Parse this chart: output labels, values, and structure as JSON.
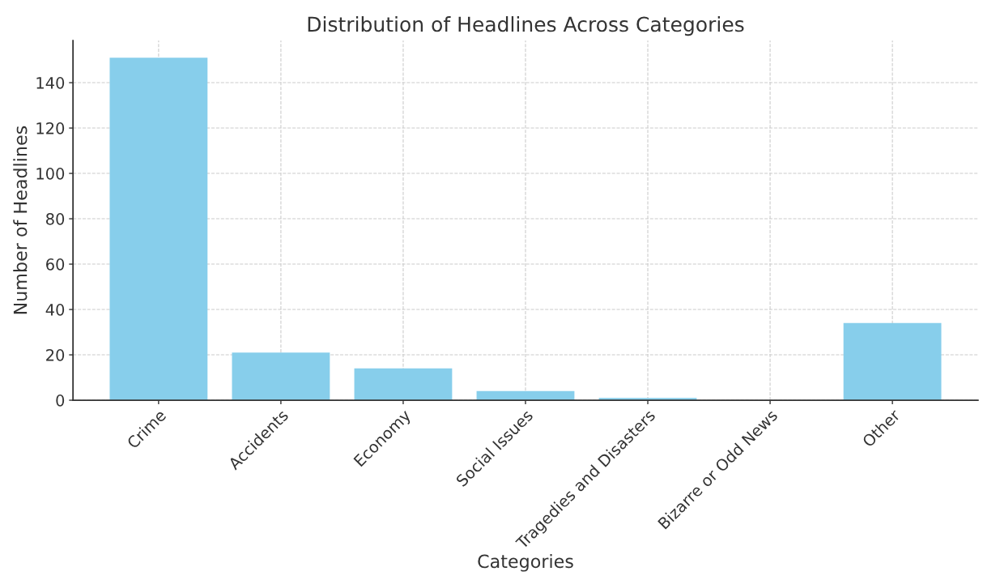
{
  "chart_data": {
    "type": "bar",
    "title": "Distribution of Headlines Across Categories",
    "xlabel": "Categories",
    "ylabel": "Number of Headlines",
    "categories": [
      "Crime",
      "Accidents",
      "Economy",
      "Social Issues",
      "Tragedies and Disasters",
      "Bizarre or Odd News",
      "Other"
    ],
    "values": [
      151,
      21,
      14,
      4,
      1,
      0,
      34
    ],
    "color": "#87ceeb",
    "ylim": [
      0,
      158.55
    ],
    "yticks": [
      0,
      20,
      40,
      60,
      80,
      100,
      120,
      140
    ],
    "grid": true
  }
}
